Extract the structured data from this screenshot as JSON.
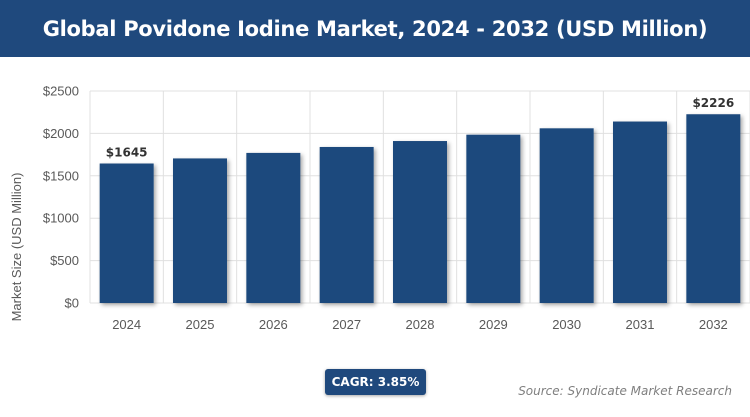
{
  "header": {
    "title": "Global Povidone Iodine Market, 2024 - 2032 (USD Million)"
  },
  "footer": {
    "cagr_label": "CAGR: 3.85%",
    "source": "Source: Syndicate Market Research"
  },
  "colors": {
    "brand": "#1f497d",
    "bar": "#1f497d",
    "grid": "#e0e0e0",
    "axis_text": "#595959",
    "source_text": "#7f7f7f"
  },
  "chart_data": {
    "type": "bar",
    "title": "Global Povidone Iodine Market, 2024 - 2032 (USD Million)",
    "xlabel": "",
    "ylabel": "Market Size (USD Million)",
    "categories": [
      "2024",
      "2025",
      "2026",
      "2027",
      "2028",
      "2029",
      "2030",
      "2031",
      "2032"
    ],
    "values": [
      1645,
      1705,
      1770,
      1840,
      1910,
      1985,
      2060,
      2140,
      2226
    ],
    "data_labels": [
      "$1645",
      "",
      "",
      "",
      "",
      "",
      "",
      "",
      "$2226"
    ],
    "ylim": [
      0,
      2500
    ],
    "yticks": [
      0,
      500,
      1000,
      1500,
      2000,
      2500
    ],
    "ytick_labels": [
      "$0",
      "$500",
      "$1000",
      "$1500",
      "$2000",
      "$2500"
    ],
    "grid": true,
    "legend": "none"
  }
}
